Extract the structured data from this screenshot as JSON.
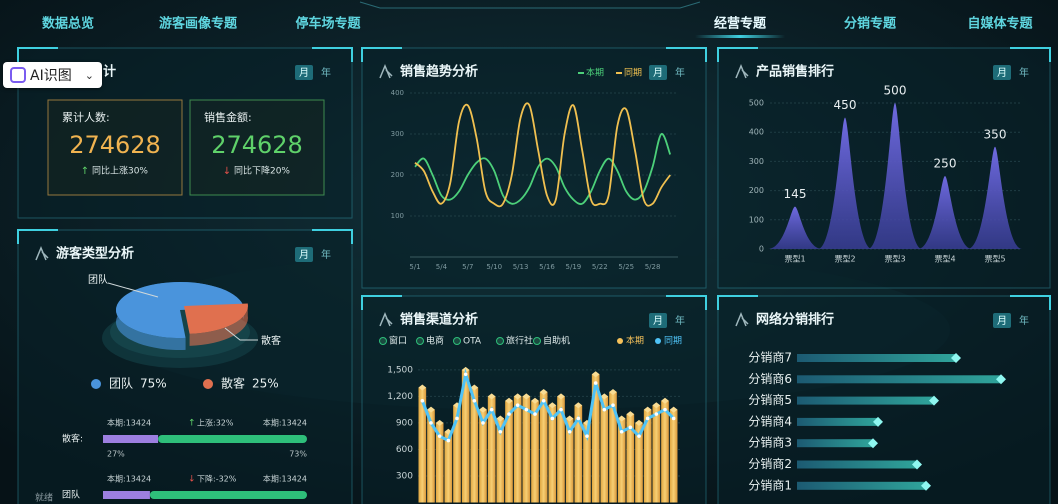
{
  "nav": [
    "数据总览",
    "游客画像专题",
    "停车场专题",
    "经营专题",
    "分销专题",
    "自媒体专题"
  ],
  "widget": {
    "label": "AI识图"
  },
  "toggle": [
    "月",
    "年"
  ],
  "panels": {
    "summary": "计",
    "tourist_type": "游客类型分析",
    "sales_trend": "销售趋势分析",
    "product_rank": "产品销售排行",
    "channel": "销售渠道分析",
    "distributor_rank": "网络分销排行"
  },
  "stats": [
    {
      "label": "累计人数:",
      "value": 274628,
      "arrow": "↑",
      "change": "同比上涨30%",
      "color": "#f0b350"
    },
    {
      "label": "销售金额:",
      "value": 274628,
      "arrow": "↓",
      "change": "同比下降20%",
      "color": "#5fd16a"
    }
  ],
  "progress": [
    {
      "label": "散客:",
      "left": "本期:13424",
      "arrow": "↑",
      "change": "上涨:32%",
      "right": "本期:13424",
      "values": [
        27,
        73
      ],
      "value_labels": [
        "27%",
        "73%"
      ]
    },
    {
      "label": "团队",
      "left": "本期:13424",
      "arrow": "↓",
      "change": "下降:-32%",
      "right": "本期:13424",
      "values": [
        23,
        77
      ]
    }
  ],
  "status": "就绪",
  "chart_data": [
    {
      "type": "line",
      "categories": [
        "5/1",
        null,
        null,
        "5/4",
        null,
        null,
        "5/7",
        null,
        null,
        "5/10",
        null,
        null,
        "5/13",
        null,
        null,
        "5/16",
        null,
        null,
        "5/19",
        null,
        null,
        "5/22",
        null,
        null,
        "5/25",
        null,
        null,
        "5/28",
        null,
        null
      ],
      "series": [
        {
          "name": "本期",
          "color": "#4cd07a",
          "values": [
            220,
            240,
            200,
            150,
            140,
            160,
            200,
            230,
            240,
            210,
            150,
            130,
            140,
            170,
            220,
            240,
            220,
            170,
            140,
            130,
            160,
            210,
            240,
            210,
            160,
            140,
            160,
            220,
            300,
            250
          ]
        },
        {
          "name": "同期",
          "color": "#f0c050",
          "values": [
            230,
            210,
            160,
            130,
            180,
            330,
            370,
            290,
            160,
            130,
            130,
            200,
            340,
            370,
            260,
            150,
            140,
            300,
            370,
            260,
            140,
            130,
            150,
            320,
            360,
            260,
            140,
            130,
            170,
            200
          ]
        }
      ],
      "ylim": [
        0,
        400
      ],
      "yticks": [
        100,
        200,
        300,
        400
      ],
      "grid": true
    },
    {
      "type": "area",
      "categories": [
        "票型1",
        "票型2",
        "票型3",
        "票型4",
        "票型5"
      ],
      "values": [
        145,
        450,
        500,
        250,
        350
      ],
      "color": "#6f6ae0",
      "ylim": [
        0,
        500
      ],
      "yticks": [
        0,
        100,
        200,
        300,
        400,
        500
      ],
      "grid": true
    },
    {
      "type": "pie",
      "categories": [
        "团队",
        "散客"
      ],
      "values": [
        75,
        25
      ],
      "value_labels": [
        "75%",
        "25%"
      ],
      "colors": [
        "#4a94dc",
        "#e0704f"
      ]
    },
    {
      "type": "combo",
      "channels": [
        "窗口",
        "电商",
        "OTA",
        "旅行社",
        "自助机"
      ],
      "series": [
        {
          "name": "本期",
          "color": "#f5c15a",
          "kind": "bar",
          "values": [
            1300,
            1050,
            900,
            800,
            1100,
            1500,
            1300,
            1050,
            1200,
            950,
            1150,
            1200,
            1200,
            1150,
            1250,
            1100,
            1200,
            950,
            1100,
            900,
            1450,
            1200,
            1250,
            950,
            1000,
            900,
            1050,
            1100,
            1150,
            1050
          ]
        },
        {
          "name": "同期",
          "color": "#4fc3f7",
          "kind": "line",
          "values": [
            1150,
            900,
            750,
            700,
            950,
            1450,
            1150,
            900,
            1050,
            800,
            1000,
            1100,
            1050,
            1000,
            1150,
            950,
            1050,
            800,
            950,
            750,
            1350,
            1050,
            1100,
            800,
            850,
            750,
            950,
            1000,
            1050,
            950
          ]
        }
      ],
      "ylim": [
        0,
        1600
      ],
      "yticks": [
        300,
        600,
        900,
        {
          "value": 1200,
          "label": "1,200"
        },
        {
          "value": 1500,
          "label": "1,500"
        }
      ],
      "grid": true
    },
    {
      "type": "bar",
      "orientation": "horizontal",
      "categories": [
        "分销商7",
        "分销商6",
        "分销商5",
        "分销商4",
        "分销商3",
        "分销商2",
        "分销商1"
      ],
      "values": [
        158,
        203,
        136,
        80,
        75,
        119,
        128
      ],
      "color": "#2fa39a",
      "xlim": [
        0,
        210
      ]
    }
  ]
}
